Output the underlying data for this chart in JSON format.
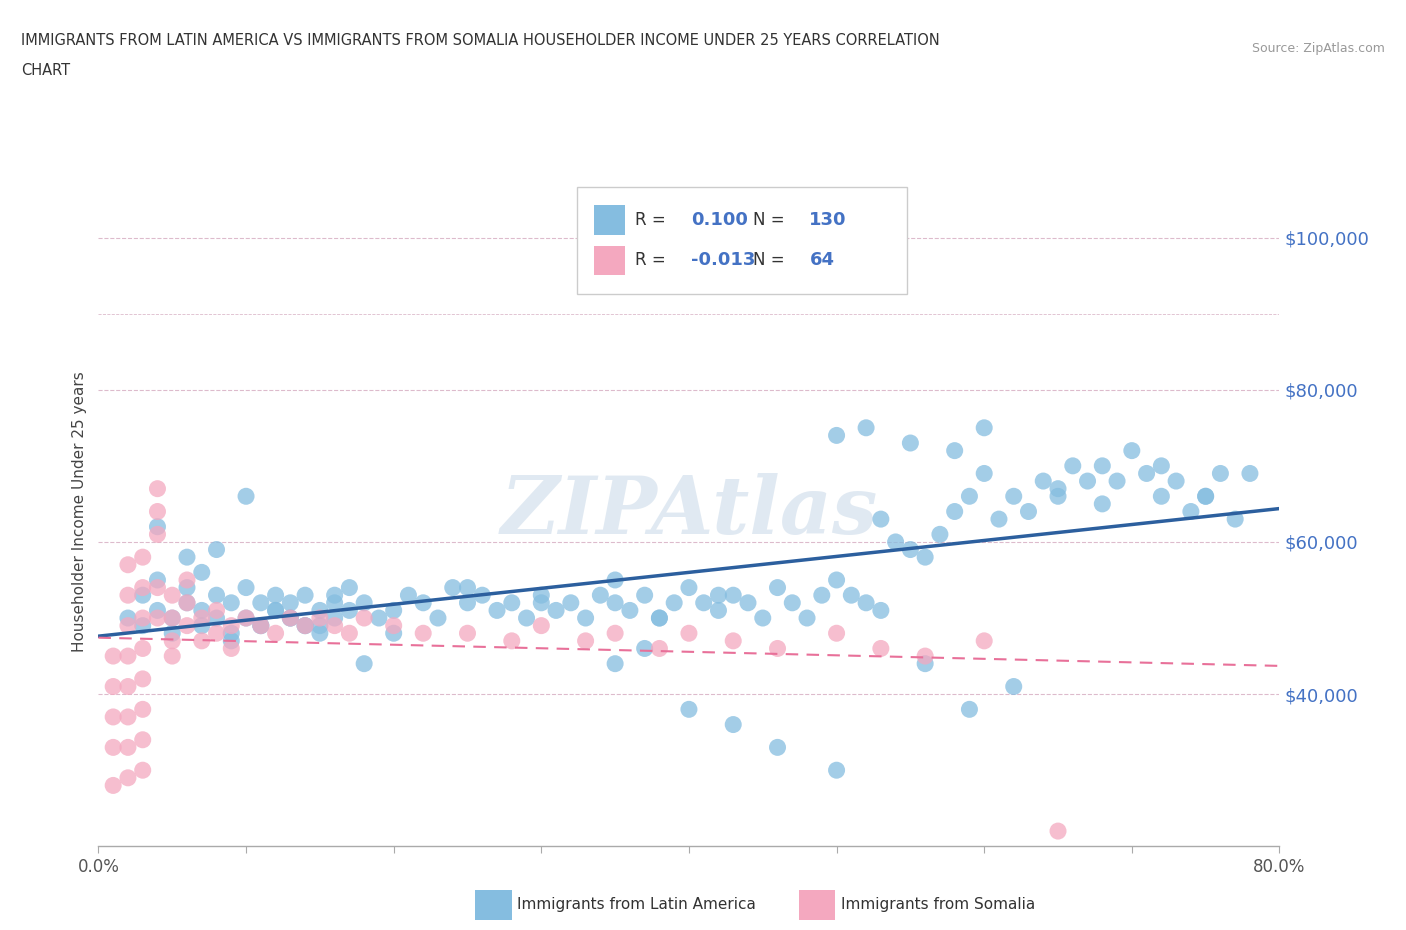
{
  "title_line1": "IMMIGRANTS FROM LATIN AMERICA VS IMMIGRANTS FROM SOMALIA HOUSEHOLDER INCOME UNDER 25 YEARS CORRELATION",
  "title_line2": "CHART",
  "source": "Source: ZipAtlas.com",
  "ylabel": "Householder Income Under 25 years",
  "legend_label1": "Immigrants from Latin America",
  "legend_label2": "Immigrants from Somalia",
  "R1": 0.1,
  "N1": 130,
  "R2": -0.013,
  "N2": 64,
  "color1": "#85bde0",
  "color2": "#f4a8bf",
  "trendline1_color": "#2c5f9e",
  "trendline2_color": "#e87099",
  "watermark": "ZIPAtlas",
  "xlim": [
    0.0,
    0.8
  ],
  "ylim": [
    20000,
    108000
  ],
  "yticks": [
    40000,
    60000,
    80000,
    100000
  ],
  "ytick_labels": [
    "$40,000",
    "$60,000",
    "$80,000",
    "$100,000"
  ],
  "xticks": [
    0.0,
    0.1,
    0.2,
    0.3,
    0.4,
    0.5,
    0.6,
    0.7,
    0.8
  ],
  "xtick_labels": [
    "0.0%",
    "",
    "",
    "",
    "",
    "",
    "",
    "",
    "80.0%"
  ],
  "blue_x": [
    0.02,
    0.03,
    0.03,
    0.04,
    0.04,
    0.05,
    0.05,
    0.06,
    0.06,
    0.07,
    0.07,
    0.08,
    0.08,
    0.09,
    0.09,
    0.1,
    0.1,
    0.11,
    0.11,
    0.12,
    0.12,
    0.13,
    0.13,
    0.14,
    0.14,
    0.15,
    0.15,
    0.16,
    0.16,
    0.17,
    0.18,
    0.19,
    0.2,
    0.21,
    0.22,
    0.23,
    0.24,
    0.25,
    0.26,
    0.27,
    0.28,
    0.29,
    0.3,
    0.31,
    0.32,
    0.33,
    0.34,
    0.35,
    0.36,
    0.37,
    0.38,
    0.39,
    0.4,
    0.41,
    0.42,
    0.43,
    0.44,
    0.45,
    0.46,
    0.47,
    0.48,
    0.49,
    0.5,
    0.51,
    0.52,
    0.53,
    0.54,
    0.55,
    0.56,
    0.57,
    0.58,
    0.59,
    0.6,
    0.61,
    0.62,
    0.63,
    0.64,
    0.65,
    0.66,
    0.67,
    0.68,
    0.69,
    0.7,
    0.71,
    0.72,
    0.73,
    0.74,
    0.75,
    0.76,
    0.77,
    0.04,
    0.06,
    0.07,
    0.08,
    0.09,
    0.1,
    0.11,
    0.12,
    0.13,
    0.14,
    0.15,
    0.16,
    0.17,
    0.18,
    0.2,
    0.35,
    0.37,
    0.4,
    0.43,
    0.46,
    0.5,
    0.53,
    0.56,
    0.59,
    0.62,
    0.5,
    0.52,
    0.55,
    0.58,
    0.6,
    0.65,
    0.68,
    0.72,
    0.75,
    0.78,
    0.25,
    0.3,
    0.35,
    0.38,
    0.42
  ],
  "blue_y": [
    50000,
    49000,
    53000,
    51000,
    55000,
    50000,
    48000,
    52000,
    54000,
    49000,
    51000,
    53000,
    50000,
    52000,
    47000,
    54000,
    50000,
    52000,
    49000,
    53000,
    51000,
    50000,
    52000,
    49000,
    53000,
    51000,
    48000,
    52000,
    50000,
    54000,
    52000,
    50000,
    51000,
    53000,
    52000,
    50000,
    54000,
    52000,
    53000,
    51000,
    52000,
    50000,
    53000,
    51000,
    52000,
    50000,
    53000,
    52000,
    51000,
    53000,
    50000,
    52000,
    54000,
    52000,
    51000,
    53000,
    52000,
    50000,
    54000,
    52000,
    50000,
    53000,
    55000,
    53000,
    52000,
    63000,
    60000,
    59000,
    58000,
    61000,
    64000,
    66000,
    69000,
    63000,
    66000,
    64000,
    68000,
    66000,
    70000,
    68000,
    70000,
    68000,
    72000,
    69000,
    66000,
    68000,
    64000,
    66000,
    69000,
    63000,
    62000,
    58000,
    56000,
    59000,
    48000,
    66000,
    49000,
    51000,
    50000,
    49000,
    49000,
    53000,
    51000,
    44000,
    48000,
    44000,
    46000,
    38000,
    36000,
    33000,
    30000,
    51000,
    44000,
    38000,
    41000,
    74000,
    75000,
    73000,
    72000,
    75000,
    67000,
    65000,
    70000,
    66000,
    69000,
    54000,
    52000,
    55000,
    50000,
    53000
  ],
  "pink_x": [
    0.01,
    0.01,
    0.01,
    0.01,
    0.01,
    0.02,
    0.02,
    0.02,
    0.02,
    0.02,
    0.02,
    0.02,
    0.02,
    0.03,
    0.03,
    0.03,
    0.03,
    0.03,
    0.03,
    0.03,
    0.03,
    0.04,
    0.04,
    0.04,
    0.04,
    0.04,
    0.05,
    0.05,
    0.05,
    0.05,
    0.06,
    0.06,
    0.06,
    0.07,
    0.07,
    0.08,
    0.08,
    0.09,
    0.09,
    0.1,
    0.11,
    0.12,
    0.13,
    0.14,
    0.15,
    0.16,
    0.17,
    0.18,
    0.2,
    0.22,
    0.25,
    0.28,
    0.3,
    0.33,
    0.35,
    0.38,
    0.4,
    0.43,
    0.46,
    0.5,
    0.53,
    0.56,
    0.6,
    0.65
  ],
  "pink_y": [
    28000,
    33000,
    37000,
    41000,
    45000,
    29000,
    33000,
    37000,
    41000,
    45000,
    49000,
    53000,
    57000,
    30000,
    34000,
    38000,
    42000,
    46000,
    50000,
    54000,
    58000,
    61000,
    64000,
    67000,
    54000,
    50000,
    47000,
    50000,
    53000,
    45000,
    52000,
    49000,
    55000,
    50000,
    47000,
    51000,
    48000,
    49000,
    46000,
    50000,
    49000,
    48000,
    50000,
    49000,
    50000,
    49000,
    48000,
    50000,
    49000,
    48000,
    48000,
    47000,
    49000,
    47000,
    48000,
    46000,
    48000,
    47000,
    46000,
    48000,
    46000,
    45000,
    47000,
    22000
  ]
}
